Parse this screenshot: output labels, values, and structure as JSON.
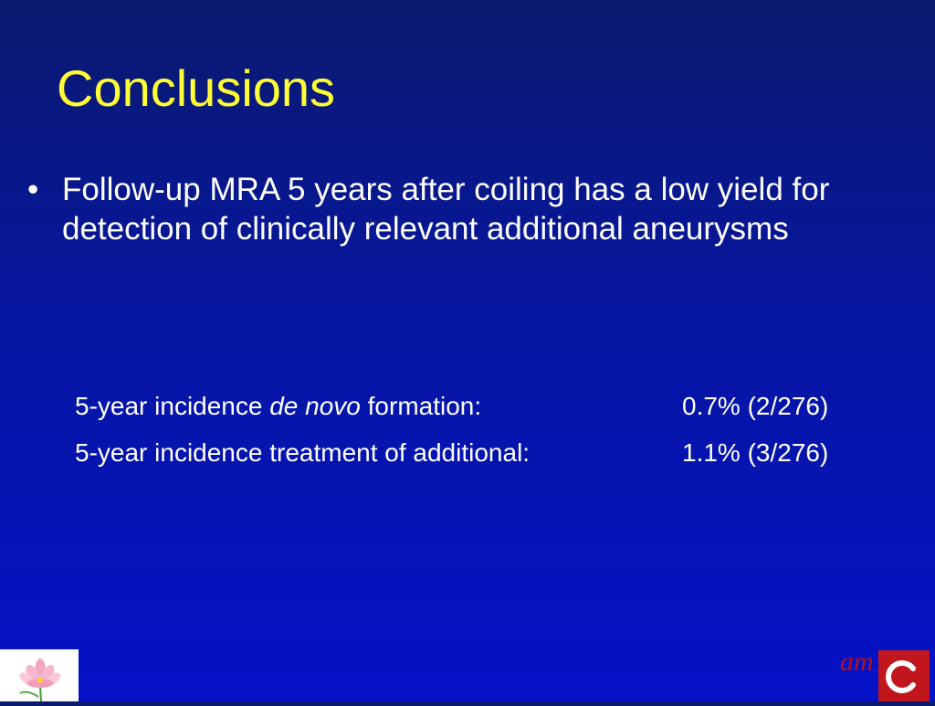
{
  "slide": {
    "title": "Conclusions",
    "bullet": {
      "marker": "•",
      "text": "Follow-up MRA 5 years after coiling has a low yield for detection of clinically relevant additional aneurysms"
    },
    "stats": [
      {
        "label_prefix": "5-year incidence ",
        "label_italic": "de novo",
        "label_suffix": " formation:",
        "value": "0.7% (2/276)"
      },
      {
        "label": "5-year incidence treatment of additional:",
        "value": "1.1% (3/276)"
      }
    ]
  },
  "logos": {
    "left": {
      "icon": "lotus-flower-icon"
    },
    "right": {
      "text": "am",
      "icon": "amc-c-logo-icon"
    }
  },
  "colors": {
    "title": "#ffff33",
    "text": "#ffffff",
    "background_top": "#0a1a6e",
    "background_bottom": "#0512c8",
    "logo_red": "#c0161c"
  }
}
